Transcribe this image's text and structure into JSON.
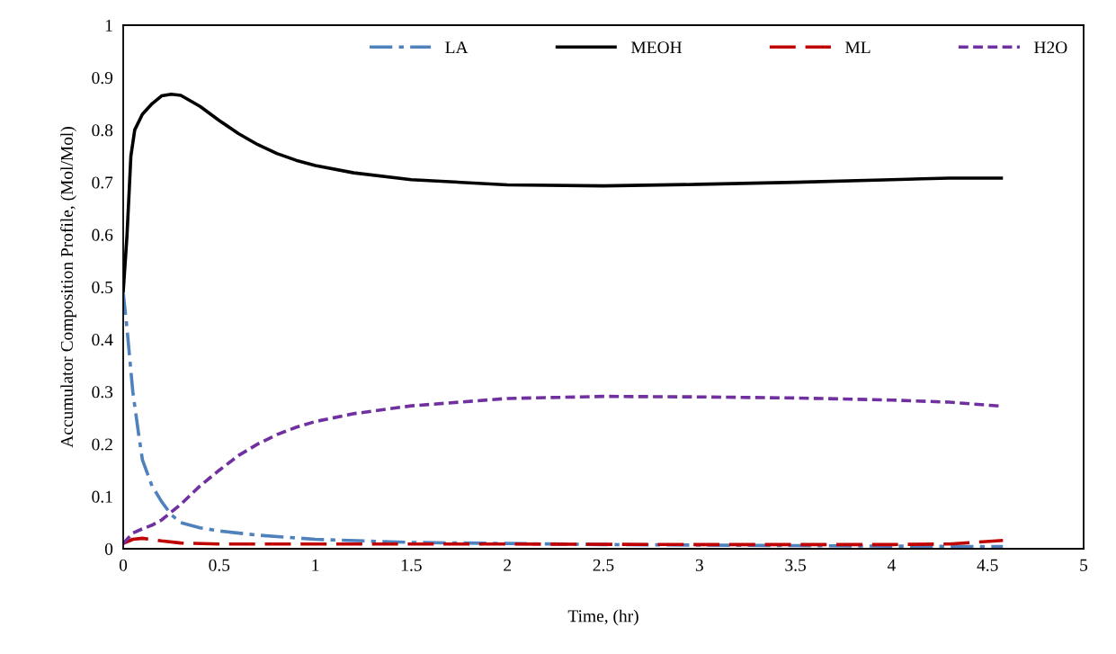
{
  "chart_data": {
    "type": "line",
    "xlabel": "Time, (hr)",
    "ylabel": "Accumulator Composition Profile, (Mol/Mol)",
    "xlim": [
      0,
      5
    ],
    "xticks": [
      0,
      0.5,
      1,
      1.5,
      2,
      2.5,
      3,
      3.5,
      4,
      4.5,
      5
    ],
    "ylim": [
      0,
      1
    ],
    "yticks": [
      0,
      0.1,
      0.2,
      0.3,
      0.4,
      0.5,
      0.6,
      0.7,
      0.8,
      0.9,
      1
    ],
    "grid": false,
    "legend": "top",
    "marker": "none",
    "series": [
      {
        "name": "LA",
        "color": "#4f81bd",
        "line_style": "dashdot",
        "x": [
          0,
          0.02,
          0.05,
          0.08,
          0.1,
          0.15,
          0.2,
          0.25,
          0.3,
          0.4,
          0.5,
          0.7,
          1,
          1.5,
          2,
          2.5,
          3,
          3.5,
          4,
          4.58
        ],
        "values": [
          0.49,
          0.42,
          0.3,
          0.22,
          0.17,
          0.12,
          0.09,
          0.065,
          0.05,
          0.04,
          0.034,
          0.026,
          0.018,
          0.012,
          0.01,
          0.008,
          0.007,
          0.006,
          0.005,
          0.004
        ]
      },
      {
        "name": "MEOH",
        "color": "#000000",
        "line_style": "solid",
        "x": [
          0,
          0.02,
          0.04,
          0.06,
          0.1,
          0.15,
          0.2,
          0.25,
          0.3,
          0.4,
          0.5,
          0.6,
          0.7,
          0.8,
          0.9,
          1.0,
          1.2,
          1.5,
          2,
          2.5,
          3,
          3.5,
          4,
          4.3,
          4.58
        ],
        "values": [
          0.49,
          0.6,
          0.75,
          0.8,
          0.83,
          0.85,
          0.865,
          0.868,
          0.866,
          0.845,
          0.818,
          0.793,
          0.772,
          0.755,
          0.742,
          0.732,
          0.718,
          0.705,
          0.695,
          0.693,
          0.696,
          0.7,
          0.705,
          0.708,
          0.708
        ]
      },
      {
        "name": "ML",
        "color": "#c00000",
        "line_style": "dashed",
        "x": [
          0,
          0.05,
          0.1,
          0.2,
          0.3,
          0.5,
          1,
          2,
          3,
          4,
          4.3,
          4.58
        ],
        "values": [
          0.01,
          0.018,
          0.02,
          0.015,
          0.011,
          0.009,
          0.009,
          0.009,
          0.008,
          0.008,
          0.009,
          0.016
        ]
      },
      {
        "name": "H2O",
        "color": "#7030a0",
        "line_style": "dotted",
        "x": [
          0,
          0.05,
          0.1,
          0.15,
          0.2,
          0.25,
          0.3,
          0.4,
          0.5,
          0.6,
          0.7,
          0.8,
          0.9,
          1,
          1.2,
          1.5,
          2,
          2.5,
          3,
          3.5,
          4,
          4.3,
          4.58
        ],
        "values": [
          0.01,
          0.03,
          0.038,
          0.045,
          0.055,
          0.07,
          0.085,
          0.12,
          0.15,
          0.178,
          0.2,
          0.218,
          0.232,
          0.243,
          0.258,
          0.273,
          0.287,
          0.291,
          0.29,
          0.288,
          0.284,
          0.28,
          0.272
        ]
      }
    ]
  }
}
